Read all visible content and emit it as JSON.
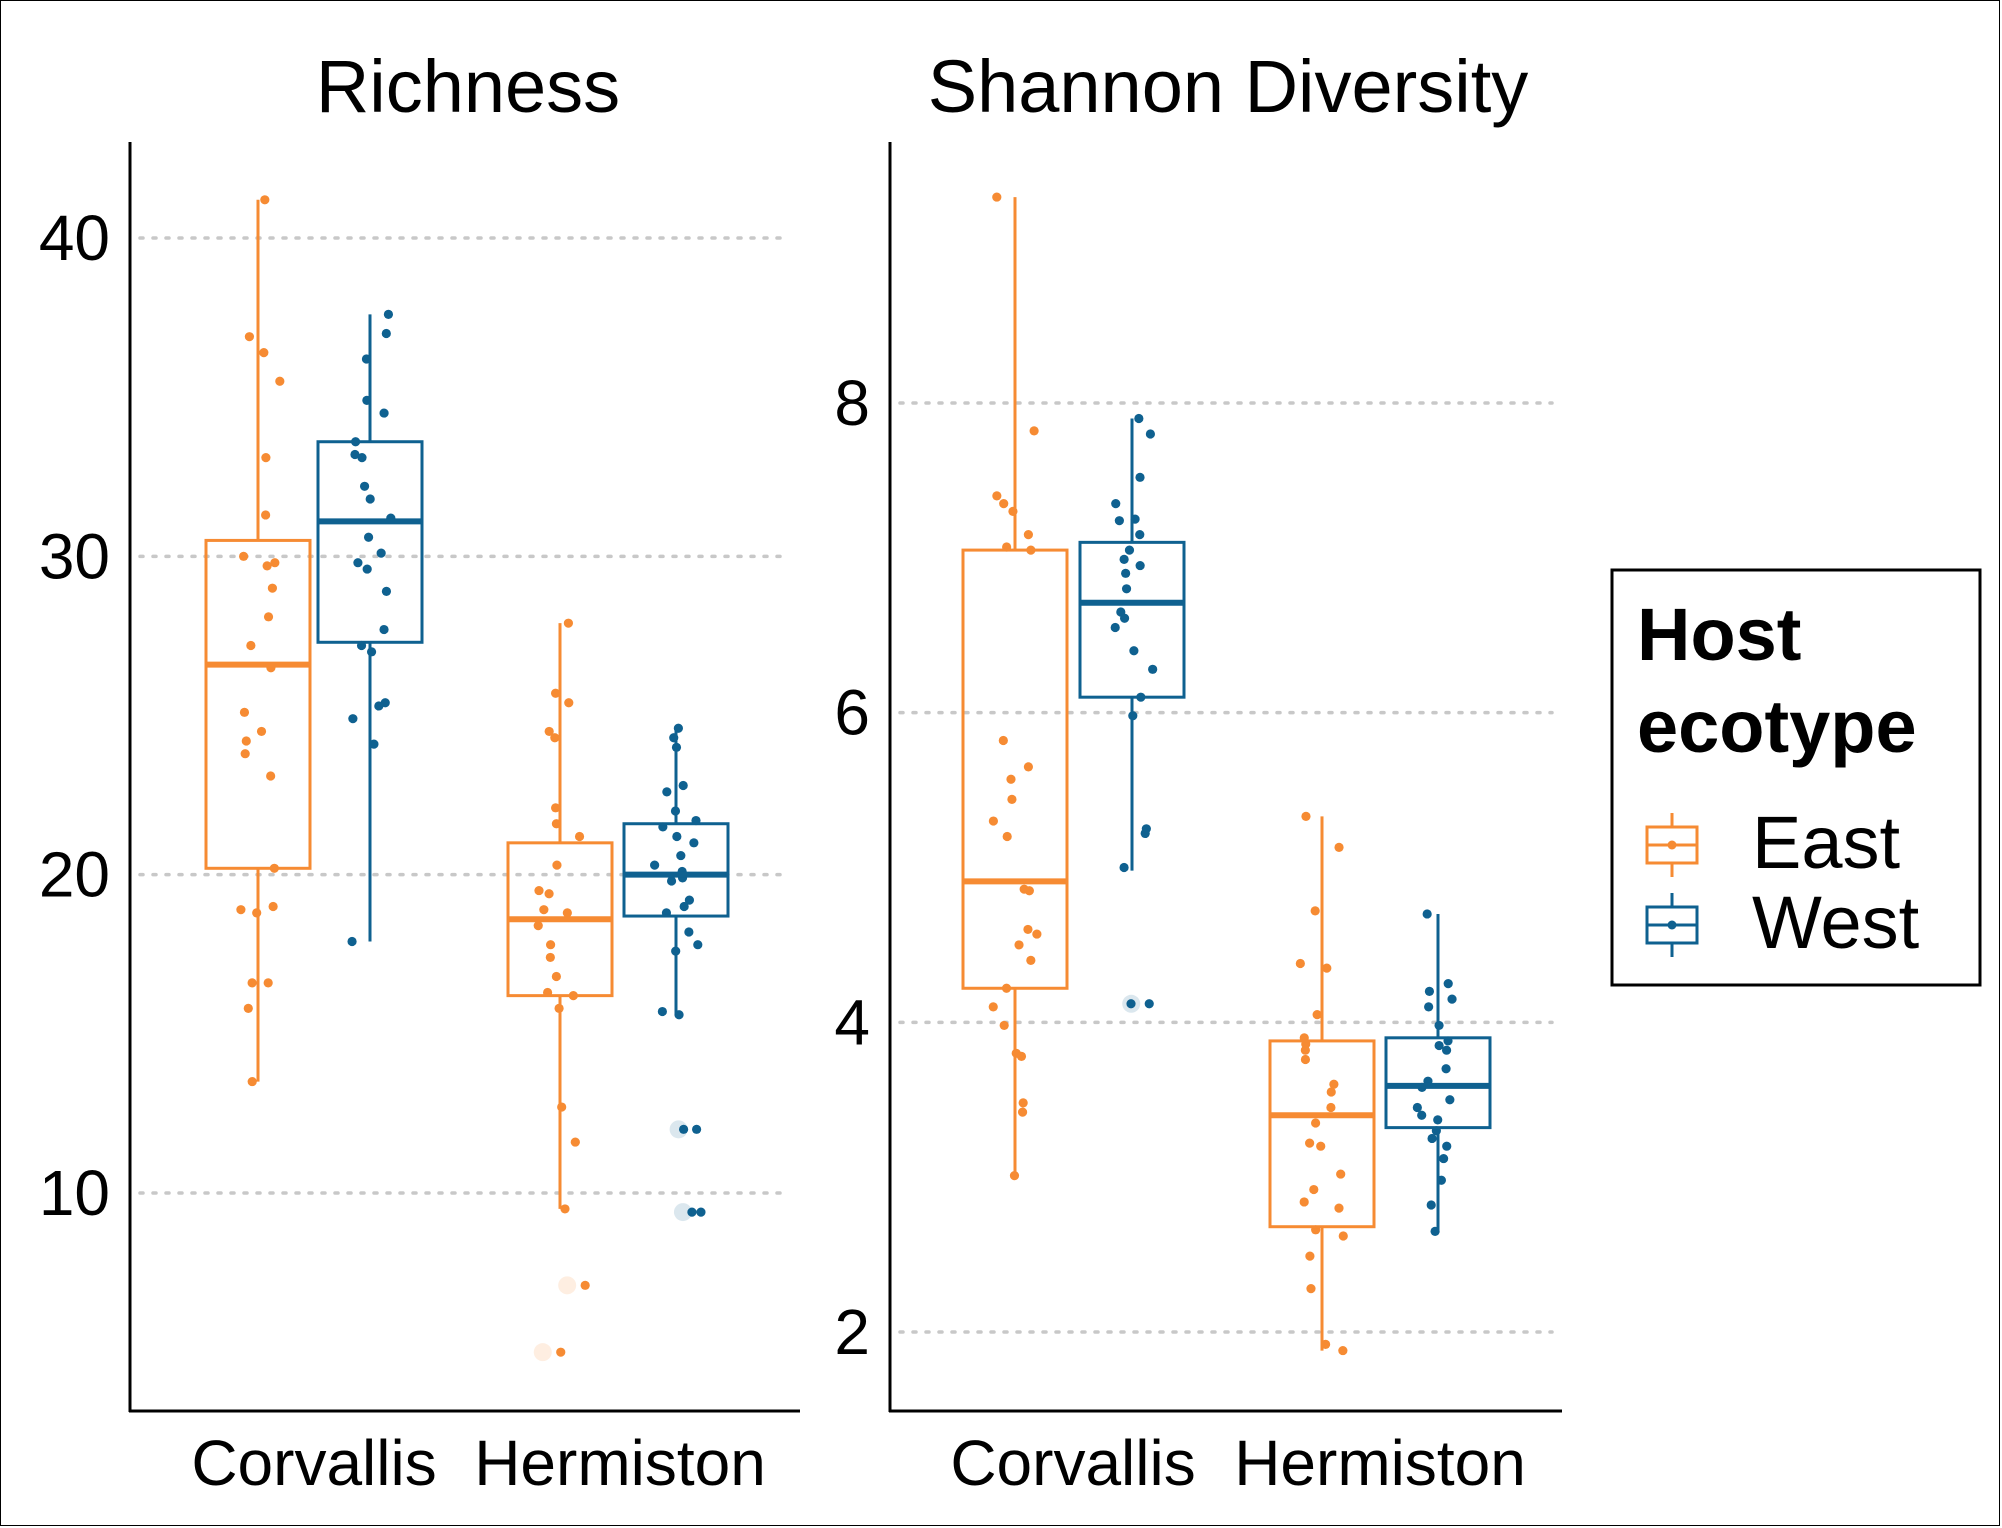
{
  "colors": {
    "East": "#f68b33",
    "West": "#0f6190",
    "grid": "#c8c8c8",
    "axis": "#000000"
  },
  "legend": {
    "title_line1": "Host",
    "title_line2": "ecotype",
    "entries": [
      {
        "label": "East",
        "group": "East"
      },
      {
        "label": "West",
        "group": "West"
      }
    ]
  },
  "chart_data": [
    {
      "type": "box",
      "title": "Richness",
      "categories": [
        "Corvallis",
        "Hermiston"
      ],
      "yticks": [
        10,
        20,
        30,
        40
      ],
      "ylim": [
        3.5,
        43
      ],
      "grid": "horizontal-dotted",
      "boxes": [
        {
          "site": "Corvallis",
          "group": "East",
          "q1": 20.2,
          "median": 26.6,
          "q3": 30.5,
          "whisker_low": 13.5,
          "whisker_high": 41.2,
          "outliers": [],
          "points": [
            41.2,
            36.9,
            36.4,
            35.5,
            33.1,
            31.3,
            30.0,
            29.8,
            29.7,
            29.0,
            28.1,
            27.2,
            26.5,
            25.1,
            24.5,
            24.2,
            23.8,
            23.1,
            20.2,
            19.0,
            18.9,
            18.8,
            16.6,
            16.6,
            15.8,
            13.5
          ]
        },
        {
          "site": "Corvallis",
          "group": "West",
          "q1": 27.3,
          "median": 31.1,
          "q3": 33.6,
          "whisker_low": 17.9,
          "whisker_high": 37.6,
          "outliers": [],
          "points": [
            37.6,
            37.0,
            36.2,
            34.9,
            34.5,
            33.6,
            33.2,
            33.1,
            32.2,
            31.8,
            31.2,
            30.6,
            30.1,
            29.8,
            29.6,
            28.9,
            27.7,
            27.2,
            27.0,
            25.4,
            25.3,
            24.9,
            24.1,
            17.9
          ]
        },
        {
          "site": "Hermiston",
          "group": "East",
          "q1": 16.2,
          "median": 18.6,
          "q3": 21.0,
          "whisker_low": 9.5,
          "whisker_high": 27.9,
          "outliers": [
            7.1,
            5.0
          ],
          "points": [
            27.9,
            25.7,
            25.4,
            24.5,
            24.3,
            22.1,
            21.6,
            21.2,
            20.3,
            19.5,
            19.4,
            18.9,
            18.8,
            18.4,
            17.8,
            17.4,
            16.8,
            16.3,
            16.2,
            15.8,
            12.7,
            11.6,
            9.5
          ]
        },
        {
          "site": "Hermiston",
          "group": "West",
          "q1": 18.7,
          "median": 20.0,
          "q3": 21.6,
          "whisker_low": 15.6,
          "whisker_high": 24.6,
          "outliers": [
            12.0,
            9.4
          ],
          "points": [
            24.6,
            24.3,
            24.0,
            22.8,
            22.6,
            22.0,
            21.7,
            21.5,
            21.2,
            21.0,
            20.6,
            20.3,
            20.1,
            19.9,
            19.8,
            19.2,
            19.0,
            18.8,
            18.2,
            17.8,
            17.6,
            15.7,
            15.6,
            12.0,
            9.4
          ]
        }
      ]
    },
    {
      "type": "box",
      "title": "Shannon Diversity",
      "categories": [
        "Corvallis",
        "Hermiston"
      ],
      "yticks": [
        2,
        4,
        6,
        8
      ],
      "ylim": [
        1.5,
        9.7
      ],
      "grid": "horizontal-dotted",
      "boxes": [
        {
          "site": "Corvallis",
          "group": "East",
          "q1": 4.22,
          "median": 4.91,
          "q3": 7.05,
          "whisker_low": 3.01,
          "whisker_high": 9.33,
          "outliers": [],
          "points": [
            9.33,
            7.82,
            7.4,
            7.35,
            7.3,
            7.15,
            7.07,
            7.05,
            5.82,
            5.65,
            5.57,
            5.44,
            5.3,
            5.2,
            4.86,
            4.85,
            4.6,
            4.57,
            4.5,
            4.4,
            4.22,
            4.1,
            3.98,
            3.8,
            3.78,
            3.48,
            3.42,
            3.01
          ]
        },
        {
          "site": "Corvallis",
          "group": "West",
          "q1": 6.1,
          "median": 6.71,
          "q3": 7.1,
          "whisker_low": 4.98,
          "whisker_high": 7.9,
          "outliers": [
            4.12
          ],
          "points": [
            7.9,
            7.8,
            7.52,
            7.35,
            7.25,
            7.24,
            7.15,
            7.05,
            6.99,
            6.95,
            6.9,
            6.8,
            6.65,
            6.61,
            6.55,
            6.4,
            6.28,
            6.1,
            5.98,
            5.25,
            5.22,
            5.0,
            4.12
          ]
        },
        {
          "site": "Hermiston",
          "group": "East",
          "q1": 2.68,
          "median": 3.4,
          "q3": 3.88,
          "whisker_low": 1.88,
          "whisker_high": 5.33,
          "outliers": [],
          "points": [
            5.33,
            5.13,
            4.72,
            4.38,
            4.35,
            4.05,
            3.9,
            3.86,
            3.82,
            3.76,
            3.6,
            3.55,
            3.45,
            3.35,
            3.22,
            3.2,
            3.02,
            2.92,
            2.84,
            2.8,
            2.66,
            2.62,
            2.49,
            2.28,
            1.92,
            1.88
          ]
        },
        {
          "site": "Hermiston",
          "group": "West",
          "q1": 3.32,
          "median": 3.59,
          "q3": 3.9,
          "whisker_low": 2.64,
          "whisker_high": 4.7,
          "outliers": [],
          "points": [
            4.7,
            4.25,
            4.2,
            4.15,
            4.1,
            3.98,
            3.88,
            3.85,
            3.82,
            3.7,
            3.62,
            3.58,
            3.5,
            3.45,
            3.4,
            3.37,
            3.3,
            3.25,
            3.2,
            3.12,
            2.98,
            2.82,
            2.65
          ]
        }
      ]
    }
  ]
}
